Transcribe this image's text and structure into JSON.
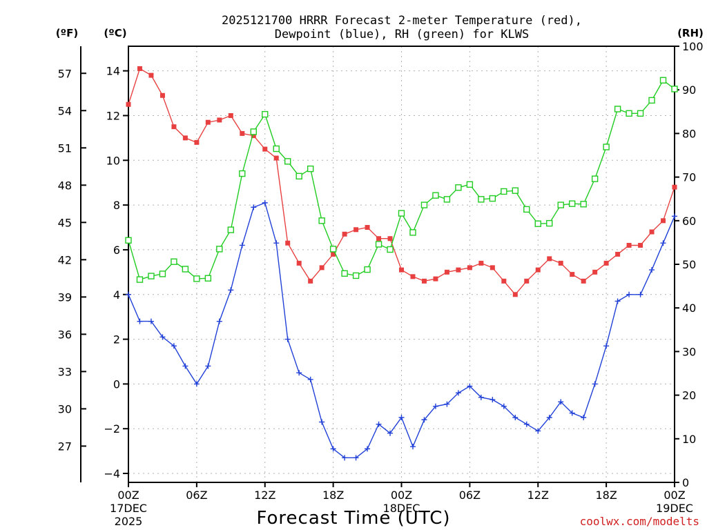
{
  "title_line1": "2025121700 HRRR Forecast 2-meter Temperature (red),",
  "title_line2": "Dewpoint (blue), RH (green) for KLWS",
  "unit_f": "(ºF)",
  "unit_c": "(ºC)",
  "unit_rh": "(RH)",
  "xlabel": "Forecast Time (UTC)",
  "credit": "coolwx.com/modelts",
  "colors": {
    "temperature": "#e84040",
    "dewpoint": "#2040d8",
    "rh": "#20cc20",
    "grid": "#b0b0b0"
  },
  "chart_data": {
    "type": "line",
    "title": "2025121700 HRRR Forecast 2-meter Temperature (red), Dewpoint (blue), RH (green) for KLWS",
    "xlabel": "Forecast Time (UTC)",
    "x_hours": [
      0,
      1,
      2,
      3,
      4,
      5,
      6,
      7,
      8,
      9,
      10,
      11,
      12,
      13,
      14,
      15,
      16,
      17,
      18,
      19,
      20,
      21,
      22,
      23,
      24,
      25,
      26,
      27,
      28,
      29,
      30,
      31,
      32,
      33,
      34,
      35,
      36,
      37,
      38,
      39,
      40,
      41,
      42,
      43,
      44,
      45,
      46,
      47,
      48
    ],
    "x_ticks": [
      {
        "hour": 0,
        "lines": [
          "00Z",
          "17DEC",
          "2025"
        ]
      },
      {
        "hour": 6,
        "lines": [
          "06Z"
        ]
      },
      {
        "hour": 12,
        "lines": [
          "12Z"
        ]
      },
      {
        "hour": 18,
        "lines": [
          "18Z"
        ]
      },
      {
        "hour": 24,
        "lines": [
          "00Z",
          "18DEC"
        ]
      },
      {
        "hour": 30,
        "lines": [
          "06Z"
        ]
      },
      {
        "hour": 36,
        "lines": [
          "12Z"
        ]
      },
      {
        "hour": 42,
        "lines": [
          "18Z"
        ]
      },
      {
        "hour": 48,
        "lines": [
          "00Z",
          "19DEC"
        ]
      }
    ],
    "xlim": [
      0,
      48
    ],
    "left_axis_c": {
      "lim": [
        -4.4,
        15.1
      ],
      "ticks": [
        -4,
        -2,
        0,
        2,
        4,
        6,
        8,
        10,
        12,
        14
      ]
    },
    "left_axis_f": {
      "ticks": [
        27,
        30,
        33,
        36,
        39,
        42,
        45,
        48,
        51,
        54,
        57
      ]
    },
    "right_axis_rh": {
      "lim": [
        0,
        100
      ],
      "ticks": [
        0,
        10,
        20,
        30,
        40,
        50,
        60,
        70,
        80,
        90,
        100
      ]
    },
    "grid": true,
    "series": [
      {
        "name": "Temperature",
        "axis": "celsius",
        "marker": "filled-square",
        "values": [
          12.5,
          14.1,
          13.8,
          12.9,
          11.5,
          11.0,
          10.8,
          11.7,
          11.8,
          12.0,
          11.2,
          11.1,
          10.5,
          10.1,
          6.3,
          5.4,
          4.6,
          5.2,
          5.8,
          6.7,
          6.9,
          7.0,
          6.5,
          6.5,
          5.1,
          4.8,
          4.6,
          4.7,
          5.0,
          5.1,
          5.2,
          5.4,
          5.2,
          4.6,
          4.0,
          4.6,
          5.1,
          5.6,
          5.4,
          4.9,
          4.6,
          5.0,
          5.4,
          5.8,
          6.2,
          6.2,
          6.8,
          7.3,
          8.8
        ]
      },
      {
        "name": "Dewpoint",
        "axis": "celsius",
        "marker": "plus",
        "values": [
          4.0,
          2.8,
          2.8,
          2.1,
          1.7,
          0.8,
          0.0,
          0.8,
          2.8,
          4.2,
          6.2,
          7.9,
          8.1,
          6.3,
          2.0,
          0.5,
          0.2,
          -1.7,
          -2.9,
          -3.3,
          -3.3,
          -2.9,
          -1.8,
          -2.2,
          -1.5,
          -2.8,
          -1.6,
          -1.0,
          -0.9,
          -0.4,
          -0.1,
          -0.6,
          -0.7,
          -1.0,
          -1.5,
          -1.8,
          -2.1,
          -1.5,
          -0.8,
          -1.3,
          -1.5,
          0.0,
          1.7,
          3.7,
          4.0,
          4.0,
          5.1,
          6.3,
          7.5
        ]
      },
      {
        "name": "RH",
        "axis": "rh",
        "marker": "open-square",
        "values": [
          55.5,
          46.5,
          47.3,
          47.8,
          50.6,
          48.9,
          46.7,
          46.8,
          53.5,
          57.9,
          70.8,
          80.4,
          84.4,
          76.5,
          73.6,
          70.2,
          71.9,
          60.0,
          53.5,
          47.9,
          47.4,
          48.8,
          54.6,
          53.4,
          61.7,
          57.3,
          63.6,
          65.8,
          64.9,
          67.6,
          68.3,
          64.9,
          65.1,
          66.7,
          66.9,
          62.6,
          59.3,
          59.4,
          63.6,
          63.9,
          63.8,
          69.6,
          76.9,
          85.6,
          84.6,
          84.6,
          87.6,
          92.2,
          90.2
        ]
      }
    ]
  }
}
